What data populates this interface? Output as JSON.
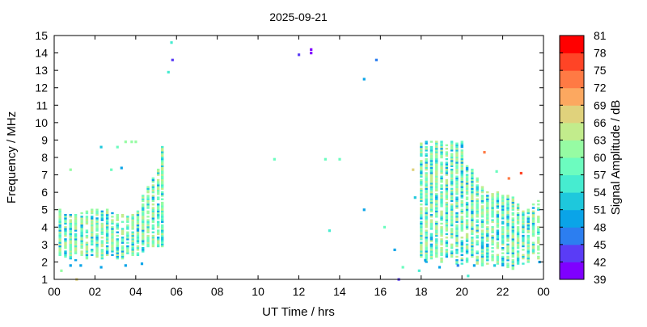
{
  "chart_data": {
    "type": "scatter",
    "title": "2025-09-21",
    "xlabel": "UT Time / hrs",
    "ylabel": "Frequency / MHz",
    "xlim": [
      0,
      24
    ],
    "ylim": [
      1,
      15
    ],
    "xticks": [
      "00",
      "02",
      "04",
      "06",
      "08",
      "10",
      "12",
      "14",
      "16",
      "18",
      "20",
      "22",
      "00"
    ],
    "yticks": [
      "1",
      "2",
      "3",
      "4",
      "5",
      "6",
      "7",
      "8",
      "9",
      "10",
      "11",
      "12",
      "13",
      "14",
      "15"
    ],
    "grid": false,
    "colorbar": {
      "label": "Signal Amplitude / dB",
      "ticks": [
        "39",
        "42",
        "45",
        "48",
        "51",
        "54",
        "57",
        "60",
        "63",
        "66",
        "69",
        "72",
        "75",
        "78",
        "81"
      ],
      "range": [
        39,
        81
      ],
      "colors": [
        "#7f00ff",
        "#5a3cf6",
        "#2c7ef0",
        "#0aa4e8",
        "#1ec8dc",
        "#46ecd0",
        "#6cfcbf",
        "#96fca3",
        "#c2ec8c",
        "#e0d27c",
        "#fca860",
        "#ff7a44",
        "#ff4426",
        "#ff0000"
      ]
    },
    "band_columns_note_amplitude_range": [
      48,
      72
    ],
    "band_columns": [
      [
        0.28,
        2.3,
        5.0
      ],
      [
        0.55,
        2.3,
        4.8
      ],
      [
        0.8,
        2.2,
        4.7
      ],
      [
        1.05,
        2.1,
        4.8
      ],
      [
        1.35,
        2.4,
        4.8
      ],
      [
        1.6,
        2.2,
        4.9
      ],
      [
        1.85,
        2.4,
        5.0
      ],
      [
        2.1,
        2.3,
        5.0
      ],
      [
        2.35,
        2.2,
        4.9
      ],
      [
        2.6,
        2.4,
        5.0
      ],
      [
        2.85,
        2.3,
        4.8
      ],
      [
        3.1,
        2.2,
        4.7
      ],
      [
        3.35,
        2.2,
        4.7
      ],
      [
        3.6,
        2.5,
        4.6
      ],
      [
        3.85,
        2.4,
        4.8
      ],
      [
        4.1,
        2.4,
        4.9
      ],
      [
        4.35,
        2.6,
        5.9
      ],
      [
        4.6,
        2.9,
        6.3
      ],
      [
        4.85,
        2.9,
        6.8
      ],
      [
        5.1,
        2.9,
        7.3
      ],
      [
        5.3,
        2.9,
        8.6
      ],
      [
        18.0,
        2.3,
        8.9
      ],
      [
        18.25,
        2.0,
        8.9
      ],
      [
        18.5,
        2.1,
        8.9
      ],
      [
        18.75,
        2.3,
        8.9
      ],
      [
        19.0,
        2.0,
        8.9
      ],
      [
        19.25,
        2.3,
        8.8
      ],
      [
        19.5,
        2.3,
        8.9
      ],
      [
        19.75,
        1.9,
        8.9
      ],
      [
        20.0,
        1.9,
        8.9
      ],
      [
        20.25,
        2.0,
        7.5
      ],
      [
        20.5,
        2.3,
        7.3
      ],
      [
        20.75,
        1.9,
        6.8
      ],
      [
        21.0,
        1.8,
        6.3
      ],
      [
        21.25,
        1.9,
        6.1
      ],
      [
        21.5,
        1.9,
        6.0
      ],
      [
        21.75,
        1.9,
        6.0
      ],
      [
        22.0,
        1.8,
        5.8
      ],
      [
        22.25,
        1.7,
        5.8
      ],
      [
        22.5,
        1.6,
        5.8
      ],
      [
        22.75,
        1.9,
        5.3
      ],
      [
        23.0,
        1.9,
        5.0
      ],
      [
        23.25,
        2.0,
        5.1
      ],
      [
        23.5,
        2.4,
        5.3
      ],
      [
        23.75,
        2.2,
        5.5
      ]
    ],
    "points": [
      [
        0.8,
        7.3,
        62
      ],
      [
        2.3,
        8.6,
        51
      ],
      [
        2.8,
        7.3,
        57
      ],
      [
        3.1,
        8.6,
        57
      ],
      [
        3.3,
        7.4,
        48
      ],
      [
        3.5,
        8.9,
        60
      ],
      [
        3.8,
        8.9,
        60
      ],
      [
        4.0,
        8.9,
        60
      ],
      [
        5.6,
        12.9,
        54
      ],
      [
        5.75,
        14.6,
        54
      ],
      [
        5.8,
        13.6,
        42
      ],
      [
        12.0,
        13.9,
        42
      ],
      [
        12.6,
        14.2,
        39
      ],
      [
        12.6,
        14.0,
        39
      ],
      [
        15.2,
        12.5,
        48
      ],
      [
        15.8,
        13.6,
        45
      ],
      [
        10.8,
        7.9,
        57
      ],
      [
        13.3,
        7.9,
        57
      ],
      [
        14.0,
        7.9,
        57
      ],
      [
        13.5,
        3.8,
        54
      ],
      [
        15.2,
        5.0,
        48
      ],
      [
        16.2,
        4.0,
        57
      ],
      [
        16.7,
        2.7,
        48
      ],
      [
        17.1,
        1.7,
        57
      ],
      [
        16.9,
        1.0,
        42
      ],
      [
        17.6,
        7.3,
        66
      ],
      [
        17.7,
        5.7,
        51
      ],
      [
        17.9,
        1.5,
        54
      ],
      [
        21.1,
        8.3,
        72
      ],
      [
        22.3,
        6.8,
        72
      ],
      [
        22.9,
        7.1,
        75
      ],
      [
        21.7,
        7.2,
        57
      ],
      [
        1.1,
        1.0,
        66
      ],
      [
        0.35,
        1.5,
        60
      ],
      [
        0.8,
        1.8,
        48
      ],
      [
        1.3,
        1.8,
        48
      ],
      [
        2.3,
        1.7,
        48
      ],
      [
        3.5,
        1.8,
        48
      ],
      [
        4.3,
        1.9,
        48
      ],
      [
        18.2,
        2.1,
        48
      ],
      [
        18.9,
        1.7,
        48
      ],
      [
        19.8,
        1.8,
        45
      ],
      [
        20.6,
        1.8,
        48
      ],
      [
        21.6,
        1.8,
        51
      ],
      [
        23.8,
        2.0,
        48
      ],
      [
        20.3,
        1.2,
        54
      ]
    ]
  }
}
